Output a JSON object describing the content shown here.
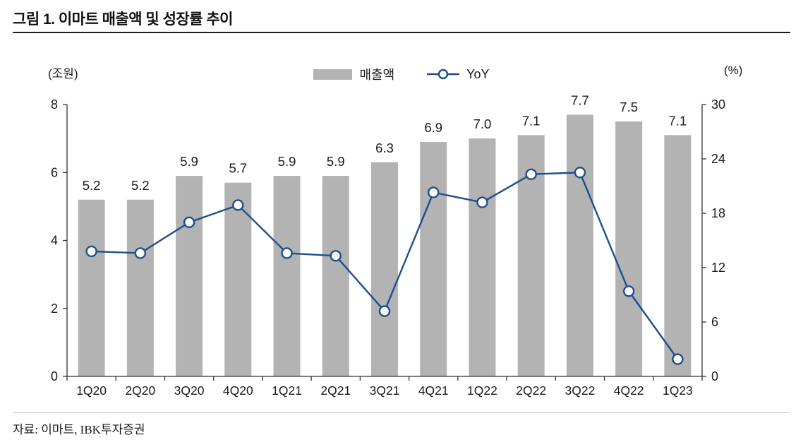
{
  "page": {
    "title": "그림 1. 이마트 매출액 및 성장률 추이",
    "source": "자료: 이마트, IBK투자증권"
  },
  "chart_data": {
    "type": "bar",
    "subtype": "bar-line-combo",
    "categories": [
      "1Q20",
      "2Q20",
      "3Q20",
      "4Q20",
      "1Q21",
      "2Q21",
      "3Q21",
      "4Q21",
      "1Q22",
      "2Q22",
      "3Q22",
      "4Q22",
      "1Q23"
    ],
    "series": [
      {
        "name": "매출액",
        "type": "bar",
        "axis": "left",
        "values": [
          5.2,
          5.2,
          5.9,
          5.7,
          5.9,
          5.9,
          6.3,
          6.9,
          7.0,
          7.1,
          7.7,
          7.5,
          7.1
        ],
        "color": "#b3b3b3"
      },
      {
        "name": "YoY",
        "type": "line",
        "axis": "right",
        "values": [
          13.8,
          13.6,
          17.0,
          18.9,
          13.6,
          13.3,
          7.2,
          20.3,
          19.2,
          22.3,
          22.5,
          9.4,
          1.9
        ],
        "color": "#1f4e8c"
      }
    ],
    "bar_labels": [
      "5.2",
      "5.2",
      "5.9",
      "5.7",
      "5.9",
      "5.9",
      "6.3",
      "6.9",
      "7.0",
      "7.1",
      "7.7",
      "7.5",
      "7.1"
    ],
    "left_axis": {
      "label": "(조원)",
      "min": 0,
      "max": 8,
      "ticks": [
        0,
        2,
        4,
        6,
        8
      ]
    },
    "right_axis": {
      "label": "(%)",
      "min": 0,
      "max": 30,
      "ticks": [
        0,
        6,
        12,
        18,
        24,
        30
      ]
    },
    "legend_position": "top-center",
    "grid": false,
    "marker": {
      "shape": "circle",
      "fill": "#ffffff"
    }
  }
}
